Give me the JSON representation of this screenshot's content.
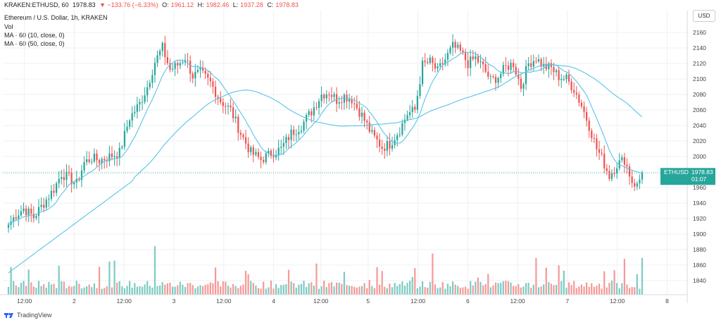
{
  "header": {
    "symbol": "KRAKEN:ETHUSD, 60",
    "last": "1978.83",
    "change": "▼ −133.76 (−6.33%)",
    "o_label": "O:",
    "o": "1961.12",
    "h_label": "H:",
    "h": "1982.46",
    "l_label": "L:",
    "l": "1937.28",
    "c_label": "C:",
    "c": "1978.83"
  },
  "legend": {
    "title": "Ethereum / U.S. Dollar, 1h, KRAKEN",
    "vol": "Vol",
    "ma10": "MA · 60 (10, close, 0)",
    "ma50": "MA · 60 (50, close, 0)"
  },
  "currency": "USD",
  "price_tag": {
    "symbol": "ETHUSD",
    "price": "1978.83",
    "countdown": "01:07"
  },
  "footer": {
    "brand": "TradingView"
  },
  "colors": {
    "up": "#26a69a",
    "down": "#ef5350",
    "vol_up": "#7fcbc3",
    "vol_down": "#f59a98",
    "ma": "#59c4e8",
    "grid": "#eef0f3"
  },
  "chart_data": {
    "type": "candlestick",
    "title": "Ethereum / U.S. Dollar, 1h, KRAKEN",
    "ylim": [
      1820,
      2170
    ],
    "y_ticks": [
      1840,
      1860,
      1880,
      1900,
      1920,
      1940,
      1960,
      1980,
      2000,
      2020,
      2040,
      2060,
      2080,
      2100,
      2120,
      2140,
      2160
    ],
    "x_ticks": [
      "12:00",
      "2",
      "12:00",
      "3",
      "12:00",
      "4",
      "12:00",
      "5",
      "12:00",
      "6",
      "12:00",
      "7",
      "12:00",
      "8"
    ],
    "x_tick_index": [
      5,
      24,
      43,
      62,
      81,
      100,
      118,
      136,
      155,
      174,
      193,
      212,
      231,
      250
    ],
    "n_bars": 162,
    "guide_price": 1978.83,
    "key_closes": [
      [
        0,
        1912
      ],
      [
        3,
        1925
      ],
      [
        6,
        1933
      ],
      [
        10,
        1922
      ],
      [
        14,
        1940
      ],
      [
        18,
        1958
      ],
      [
        21,
        1978
      ],
      [
        24,
        1972
      ],
      [
        27,
        1965
      ],
      [
        30,
        1992
      ],
      [
        33,
        1998
      ],
      [
        36,
        1995
      ],
      [
        40,
        2000
      ],
      [
        44,
        2005
      ],
      [
        48,
        2050
      ],
      [
        52,
        2068
      ],
      [
        55,
        2090
      ],
      [
        58,
        2122
      ],
      [
        61,
        2140
      ],
      [
        64,
        2112
      ],
      [
        67,
        2118
      ],
      [
        70,
        2128
      ],
      [
        73,
        2104
      ],
      [
        76,
        2108
      ],
      [
        80,
        2095
      ],
      [
        84,
        2072
      ],
      [
        88,
        2060
      ],
      [
        92,
        2030
      ],
      [
        96,
        2005
      ],
      [
        100,
        1996
      ],
      [
        104,
        2004
      ],
      [
        108,
        2010
      ],
      [
        112,
        2030
      ],
      [
        116,
        2040
      ],
      [
        120,
        2058
      ],
      [
        124,
        2080
      ],
      [
        127,
        2083
      ],
      [
        130,
        2073
      ],
      [
        133,
        2078
      ],
      [
        136,
        2074
      ],
      [
        140,
        2053
      ],
      [
        144,
        2028
      ],
      [
        148,
        2012
      ],
      [
        151,
        2016
      ],
      [
        155,
        2035
      ],
      [
        158,
        2055
      ],
      [
        161,
        2060
      ],
      [
        164,
        2118
      ],
      [
        167,
        2122
      ],
      [
        170,
        2110
      ],
      [
        173,
        2125
      ],
      [
        176,
        2142
      ],
      [
        179,
        2135
      ],
      [
        182,
        2120
      ],
      [
        185,
        2127
      ],
      [
        188,
        2115
      ],
      [
        191,
        2098
      ],
      [
        194,
        2103
      ],
      [
        197,
        2115
      ],
      [
        200,
        2120
      ],
      [
        203,
        2090
      ],
      [
        206,
        2120
      ],
      [
        209,
        2127
      ],
      [
        212,
        2116
      ],
      [
        215,
        2114
      ],
      [
        218,
        2103
      ],
      [
        221,
        2100
      ],
      [
        224,
        2087
      ],
      [
        227,
        2066
      ],
      [
        230,
        2040
      ],
      [
        233,
        2010
      ],
      [
        235,
        1998
      ],
      [
        238,
        1975
      ],
      [
        241,
        1990
      ],
      [
        244,
        1996
      ],
      [
        247,
        1968
      ],
      [
        249,
        1962
      ],
      [
        251,
        1978.83
      ]
    ],
    "volume_scale": [
      0,
      180
    ],
    "series": [
      {
        "name": "ETHUSD",
        "kind": "ohlc"
      },
      {
        "name": "MA 60 (10, close, 0)",
        "kind": "line"
      },
      {
        "name": "MA 60 (50, close, 0)",
        "kind": "line"
      },
      {
        "name": "Vol",
        "kind": "bars"
      }
    ]
  }
}
